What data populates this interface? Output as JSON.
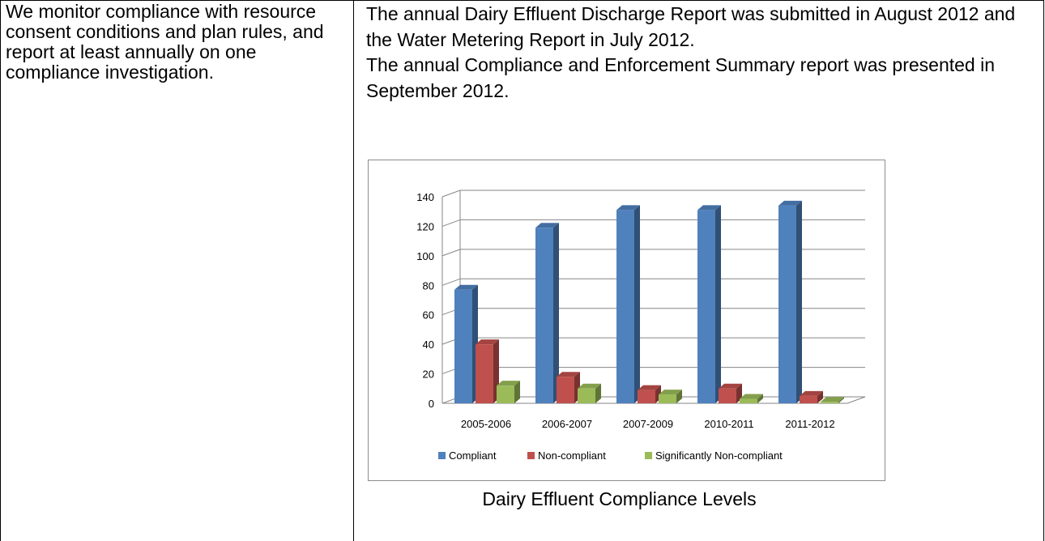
{
  "left_cell": {
    "text": "We monitor compliance with resource consent conditions and plan rules, and report at least annually on one compliance investigation."
  },
  "right_cell": {
    "paragraph_1": "The annual Dairy Effluent Discharge Report was submitted in August 2012 and the Water Metering Report in July 2012.",
    "paragraph_2": "The annual Compliance and Enforcement Summary report was presented in September 2012."
  },
  "caption": "Dairy Effluent Compliance Levels",
  "chart_data": {
    "type": "bar",
    "style": "3d-clustered-column",
    "categories": [
      "2005-2006",
      "2006-2007",
      "2007-2009",
      "2010-2011",
      "2011-2012"
    ],
    "series": [
      {
        "name": "Compliant",
        "values": [
          77,
          119,
          131,
          131,
          134
        ],
        "color": "#4f81bd"
      },
      {
        "name": "Non-compliant",
        "values": [
          40,
          18,
          9,
          10,
          5
        ],
        "color": "#c0504d"
      },
      {
        "name": "Significantly Non-compliant",
        "values": [
          12,
          10,
          6,
          3,
          1
        ],
        "color": "#9bbb59"
      }
    ],
    "yticks": [
      "0",
      "20",
      "40",
      "60",
      "80",
      "100",
      "120",
      "140"
    ],
    "ylim": [
      0,
      140
    ],
    "grid": true,
    "legend": "bottom",
    "title": "",
    "xlabel": "",
    "ylabel": ""
  }
}
